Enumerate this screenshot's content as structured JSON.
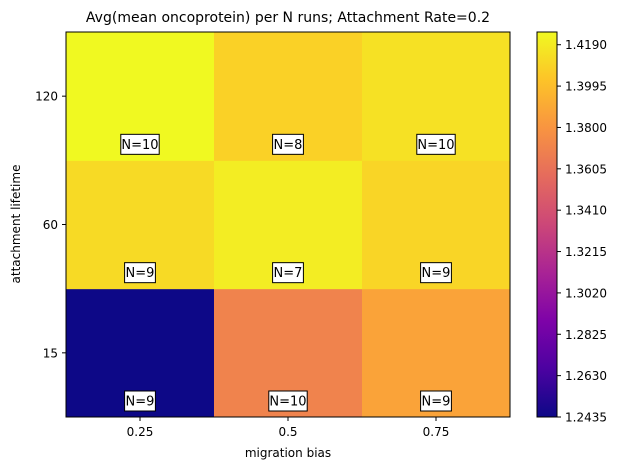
{
  "chart_data": {
    "type": "heatmap",
    "title": "Avg(mean oncoprotein) per N runs; Attachment Rate=0.2",
    "xlabel": "migration bias",
    "ylabel": "attachment lifetime",
    "x_categories": [
      "0.25",
      "0.5",
      "0.75"
    ],
    "y_categories": [
      "15",
      "60",
      "120"
    ],
    "colormap": "plasma",
    "color_range": [
      1.2435,
      1.425
    ],
    "values": [
      [
        1.2435,
        1.37,
        1.387
      ],
      [
        1.412,
        1.42,
        1.41
      ],
      [
        1.425,
        1.408,
        1.415
      ]
    ],
    "counts": [
      [
        "N=9",
        "N=10",
        "N=9"
      ],
      [
        "N=9",
        "N=7",
        "N=9"
      ],
      [
        "N=10",
        "N=8",
        "N=10"
      ]
    ],
    "colorbar_ticks": [
      "1.2435",
      "1.2630",
      "1.2825",
      "1.3020",
      "1.3215",
      "1.3410",
      "1.3605",
      "1.3800",
      "1.3995",
      "1.4190"
    ]
  }
}
